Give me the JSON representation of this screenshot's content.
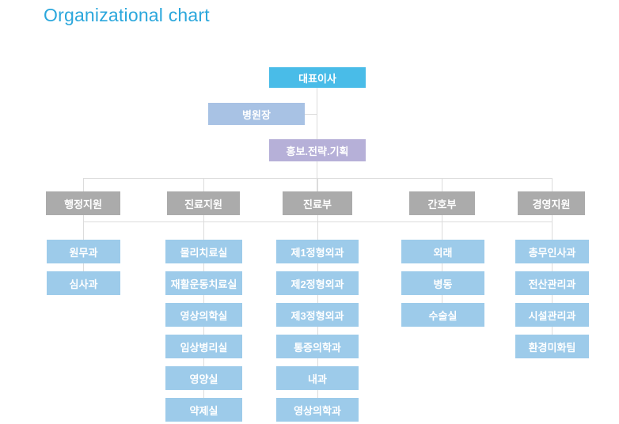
{
  "page": {
    "title": "Organizational chart"
  },
  "colors": {
    "title_text": "#2BA7DC",
    "root_bg": "#49BCE8",
    "director_bg": "#A8C2E4",
    "staff_bg": "#B6B0D8",
    "dept_bg": "#ABABAB",
    "unit_bg": "#9DCBEA",
    "line": "#DCDCDC",
    "node_text": "#FFFFFF"
  },
  "org_chart": {
    "root": {
      "label": "대표이사"
    },
    "director": {
      "label": "병원장"
    },
    "staff": {
      "label": "홍보.전략.기획"
    },
    "departments": [
      {
        "label": "행정지원",
        "units": [
          "원무과",
          "심사과"
        ]
      },
      {
        "label": "진료지원",
        "units": [
          "물리치료실",
          "재활운동치료실",
          "영상의학실",
          "임상병리실",
          "영양실",
          "약제실"
        ]
      },
      {
        "label": "진료부",
        "units": [
          "제1정형외과",
          "제2정형외과",
          "제3정형외과",
          "통증의학과",
          "내과",
          "영상의학과"
        ]
      },
      {
        "label": "간호부",
        "units": [
          "외래",
          "병동",
          "수술실"
        ]
      },
      {
        "label": "경영지원",
        "units": [
          "총무인사과",
          "전산관리과",
          "시설관리과",
          "환경미화팀"
        ]
      }
    ]
  }
}
